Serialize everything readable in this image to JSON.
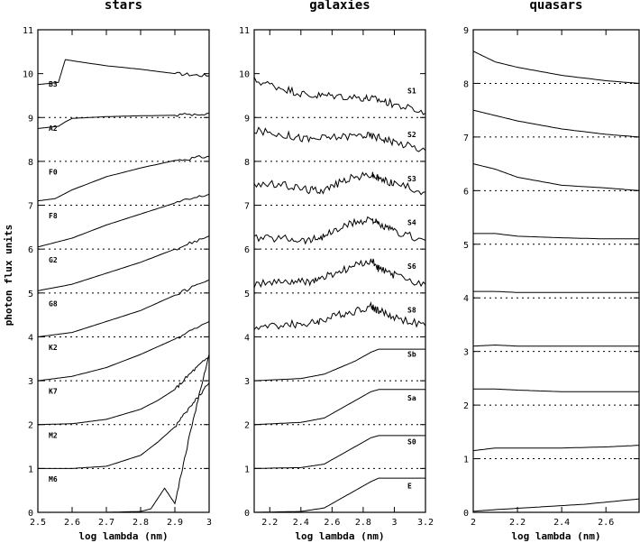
{
  "figure": {
    "ylabel": "photon flux units"
  },
  "chart_data": [
    {
      "type": "line",
      "title": "stars",
      "xlabel": "log lambda (nm)",
      "ylabel": "photon flux units",
      "xlim": [
        2.5,
        3.0
      ],
      "ylim": [
        0,
        11
      ],
      "xticks": [
        "2.5",
        "2.6",
        "2.7",
        "2.8",
        "2.9",
        "3"
      ],
      "yticks": [
        "0",
        "1",
        "2",
        "3",
        "4",
        "5",
        "6",
        "7",
        "8",
        "9",
        "10",
        "11"
      ],
      "reference_lines": [
        1,
        2,
        3,
        4,
        5,
        6,
        7,
        8,
        9
      ],
      "series": [
        {
          "name": "B3",
          "offset": 9,
          "x": [
            2.5,
            2.56,
            2.58,
            2.62,
            2.7,
            2.8,
            2.9,
            3.0
          ],
          "y": [
            9.75,
            9.8,
            10.32,
            10.27,
            10.18,
            10.1,
            10.0,
            9.95
          ]
        },
        {
          "name": "A2",
          "offset": 8,
          "x": [
            2.5,
            2.56,
            2.58,
            2.6,
            2.7,
            2.8,
            2.9,
            3.0
          ],
          "y": [
            8.75,
            8.8,
            8.9,
            8.98,
            9.02,
            9.04,
            9.05,
            9.1
          ]
        },
        {
          "name": "F0",
          "offset": 7,
          "x": [
            2.5,
            2.55,
            2.6,
            2.7,
            2.8,
            2.9,
            3.0
          ],
          "y": [
            7.1,
            7.15,
            7.35,
            7.65,
            7.85,
            8.02,
            8.12
          ]
        },
        {
          "name": "F8",
          "offset": 6,
          "x": [
            2.5,
            2.6,
            2.7,
            2.8,
            2.9,
            3.0
          ],
          "y": [
            6.05,
            6.25,
            6.55,
            6.8,
            7.05,
            7.25
          ]
        },
        {
          "name": "G2",
          "offset": 5,
          "x": [
            2.5,
            2.6,
            2.7,
            2.8,
            2.9,
            3.0
          ],
          "y": [
            5.05,
            5.2,
            5.45,
            5.7,
            6.0,
            6.3
          ]
        },
        {
          "name": "G8",
          "offset": 4,
          "x": [
            2.5,
            2.6,
            2.7,
            2.8,
            2.9,
            3.0
          ],
          "y": [
            4.0,
            4.1,
            4.35,
            4.6,
            4.95,
            5.3
          ]
        },
        {
          "name": "K2",
          "offset": 3,
          "x": [
            2.5,
            2.6,
            2.7,
            2.8,
            2.9,
            3.0
          ],
          "y": [
            3.0,
            3.1,
            3.3,
            3.6,
            3.95,
            4.35
          ]
        },
        {
          "name": "K7",
          "offset": 2,
          "x": [
            2.5,
            2.6,
            2.7,
            2.8,
            2.85,
            2.9,
            2.95,
            3.0
          ],
          "y": [
            2.0,
            2.02,
            2.12,
            2.35,
            2.55,
            2.8,
            3.2,
            3.55
          ]
        },
        {
          "name": "M2",
          "offset": 1,
          "x": [
            2.5,
            2.6,
            2.7,
            2.8,
            2.85,
            2.9,
            2.95,
            3.0
          ],
          "y": [
            1.0,
            1.0,
            1.05,
            1.3,
            1.6,
            1.95,
            2.45,
            2.95
          ]
        },
        {
          "name": "M6",
          "offset": 0,
          "x": [
            2.5,
            2.7,
            2.8,
            2.83,
            2.87,
            2.9,
            2.95,
            3.0
          ],
          "y": [
            0.0,
            0.0,
            0.02,
            0.08,
            0.55,
            0.2,
            2.0,
            3.6
          ]
        }
      ]
    },
    {
      "type": "line",
      "title": "galaxies",
      "xlabel": "log lambda (nm)",
      "xlim": [
        2.1,
        3.2
      ],
      "ylim": [
        0,
        11
      ],
      "xticks": [
        "2.2",
        "2.4",
        "2.6",
        "2.8",
        "3",
        "3.2"
      ],
      "yticks": [
        "0",
        "1",
        "2",
        "3",
        "4",
        "5",
        "6",
        "7",
        "8",
        "9",
        "10",
        "11"
      ],
      "reference_lines": [
        1,
        2,
        3,
        4,
        5,
        6,
        7,
        8,
        9
      ],
      "series": [
        {
          "name": "S1",
          "offset": 9,
          "x": [
            2.1,
            2.3,
            2.45,
            2.6,
            2.8,
            2.9,
            3.0,
            3.2
          ],
          "y": [
            9.85,
            9.65,
            9.5,
            9.5,
            9.45,
            9.4,
            9.3,
            9.1
          ]
        },
        {
          "name": "S2",
          "offset": 8,
          "x": [
            2.1,
            2.3,
            2.45,
            2.6,
            2.8,
            2.9,
            3.0,
            3.2
          ],
          "y": [
            8.7,
            8.6,
            8.5,
            8.55,
            8.6,
            8.55,
            8.45,
            8.25
          ]
        },
        {
          "name": "S3",
          "offset": 7,
          "x": [
            2.1,
            2.3,
            2.45,
            2.55,
            2.7,
            2.85,
            2.9,
            3.0,
            3.2
          ],
          "y": [
            7.5,
            7.45,
            7.35,
            7.35,
            7.6,
            7.7,
            7.6,
            7.5,
            7.3
          ]
        },
        {
          "name": "S4",
          "offset": 6,
          "x": [
            2.1,
            2.3,
            2.45,
            2.55,
            2.7,
            2.85,
            2.9,
            3.0,
            3.2
          ],
          "y": [
            6.25,
            6.25,
            6.2,
            6.3,
            6.55,
            6.7,
            6.55,
            6.4,
            6.2
          ]
        },
        {
          "name": "S6",
          "offset": 5,
          "x": [
            2.1,
            2.3,
            2.45,
            2.55,
            2.7,
            2.85,
            2.9,
            3.0,
            3.2
          ],
          "y": [
            5.2,
            5.25,
            5.25,
            5.35,
            5.55,
            5.75,
            5.55,
            5.4,
            5.2
          ]
        },
        {
          "name": "S8",
          "offset": 4,
          "x": [
            2.1,
            2.3,
            2.45,
            2.55,
            2.7,
            2.85,
            2.9,
            3.0,
            3.2
          ],
          "y": [
            4.2,
            4.28,
            4.3,
            4.4,
            4.55,
            4.7,
            4.6,
            4.45,
            4.25
          ]
        },
        {
          "name": "Sb",
          "offset": 3,
          "x": [
            2.1,
            2.4,
            2.55,
            2.65,
            2.75,
            2.85,
            2.9,
            3.2
          ],
          "y": [
            3.0,
            3.05,
            3.15,
            3.3,
            3.45,
            3.65,
            3.72,
            3.72
          ]
        },
        {
          "name": "Sa",
          "offset": 2,
          "x": [
            2.1,
            2.4,
            2.55,
            2.65,
            2.75,
            2.85,
            2.9,
            3.2
          ],
          "y": [
            2.0,
            2.05,
            2.15,
            2.35,
            2.55,
            2.75,
            2.8,
            2.8
          ]
        },
        {
          "name": "S0",
          "offset": 1,
          "x": [
            2.1,
            2.4,
            2.55,
            2.65,
            2.75,
            2.85,
            2.9,
            3.2
          ],
          "y": [
            1.0,
            1.02,
            1.1,
            1.3,
            1.5,
            1.7,
            1.75,
            1.75
          ]
        },
        {
          "name": "E",
          "offset": 0,
          "x": [
            2.1,
            2.4,
            2.55,
            2.65,
            2.75,
            2.85,
            2.9,
            3.2
          ],
          "y": [
            0.0,
            0.02,
            0.1,
            0.3,
            0.5,
            0.7,
            0.78,
            0.78
          ]
        }
      ]
    },
    {
      "type": "line",
      "title": "quasars",
      "xlabel": "log lambda (nm)",
      "xlim": [
        2.0,
        2.75
      ],
      "ylim": [
        0,
        9
      ],
      "xticks": [
        "2",
        "2.2",
        "2.4",
        "2.6"
      ],
      "yticks": [
        "0",
        "1",
        "2",
        "3",
        "4",
        "5",
        "6",
        "7",
        "8",
        "9"
      ],
      "reference_lines": [
        1,
        2,
        3,
        4,
        5,
        6,
        7,
        8
      ],
      "series": [
        {
          "name": "",
          "offset": 8,
          "x": [
            2.0,
            2.1,
            2.2,
            2.4,
            2.6,
            2.75
          ],
          "y": [
            8.6,
            8.4,
            8.3,
            8.15,
            8.05,
            8.0
          ]
        },
        {
          "name": "",
          "offset": 7,
          "x": [
            2.0,
            2.1,
            2.2,
            2.4,
            2.6,
            2.75
          ],
          "y": [
            7.5,
            7.4,
            7.3,
            7.15,
            7.05,
            7.0
          ]
        },
        {
          "name": "",
          "offset": 6,
          "x": [
            2.0,
            2.1,
            2.2,
            2.4,
            2.6,
            2.75
          ],
          "y": [
            6.5,
            6.4,
            6.25,
            6.1,
            6.05,
            6.0
          ]
        },
        {
          "name": "",
          "offset": 5,
          "x": [
            2.0,
            2.1,
            2.2,
            2.4,
            2.6,
            2.75
          ],
          "y": [
            5.2,
            5.2,
            5.15,
            5.12,
            5.1,
            5.1
          ]
        },
        {
          "name": "",
          "offset": 4,
          "x": [
            2.0,
            2.1,
            2.2,
            2.4,
            2.6,
            2.75
          ],
          "y": [
            4.12,
            4.12,
            4.1,
            4.1,
            4.1,
            4.1
          ]
        },
        {
          "name": "",
          "offset": 3,
          "x": [
            2.0,
            2.1,
            2.2,
            2.4,
            2.6,
            2.75
          ],
          "y": [
            3.1,
            3.12,
            3.1,
            3.1,
            3.1,
            3.1
          ]
        },
        {
          "name": "",
          "offset": 2,
          "x": [
            2.0,
            2.1,
            2.2,
            2.4,
            2.6,
            2.75
          ],
          "y": [
            2.3,
            2.3,
            2.28,
            2.25,
            2.25,
            2.25
          ]
        },
        {
          "name": "",
          "offset": 1,
          "x": [
            2.0,
            2.1,
            2.2,
            2.4,
            2.6,
            2.75
          ],
          "y": [
            1.15,
            1.2,
            1.2,
            1.2,
            1.22,
            1.25
          ]
        },
        {
          "name": "",
          "offset": 0,
          "x": [
            2.0,
            2.1,
            2.3,
            2.5,
            2.75
          ],
          "y": [
            0.02,
            0.05,
            0.1,
            0.15,
            0.25
          ]
        }
      ]
    }
  ]
}
